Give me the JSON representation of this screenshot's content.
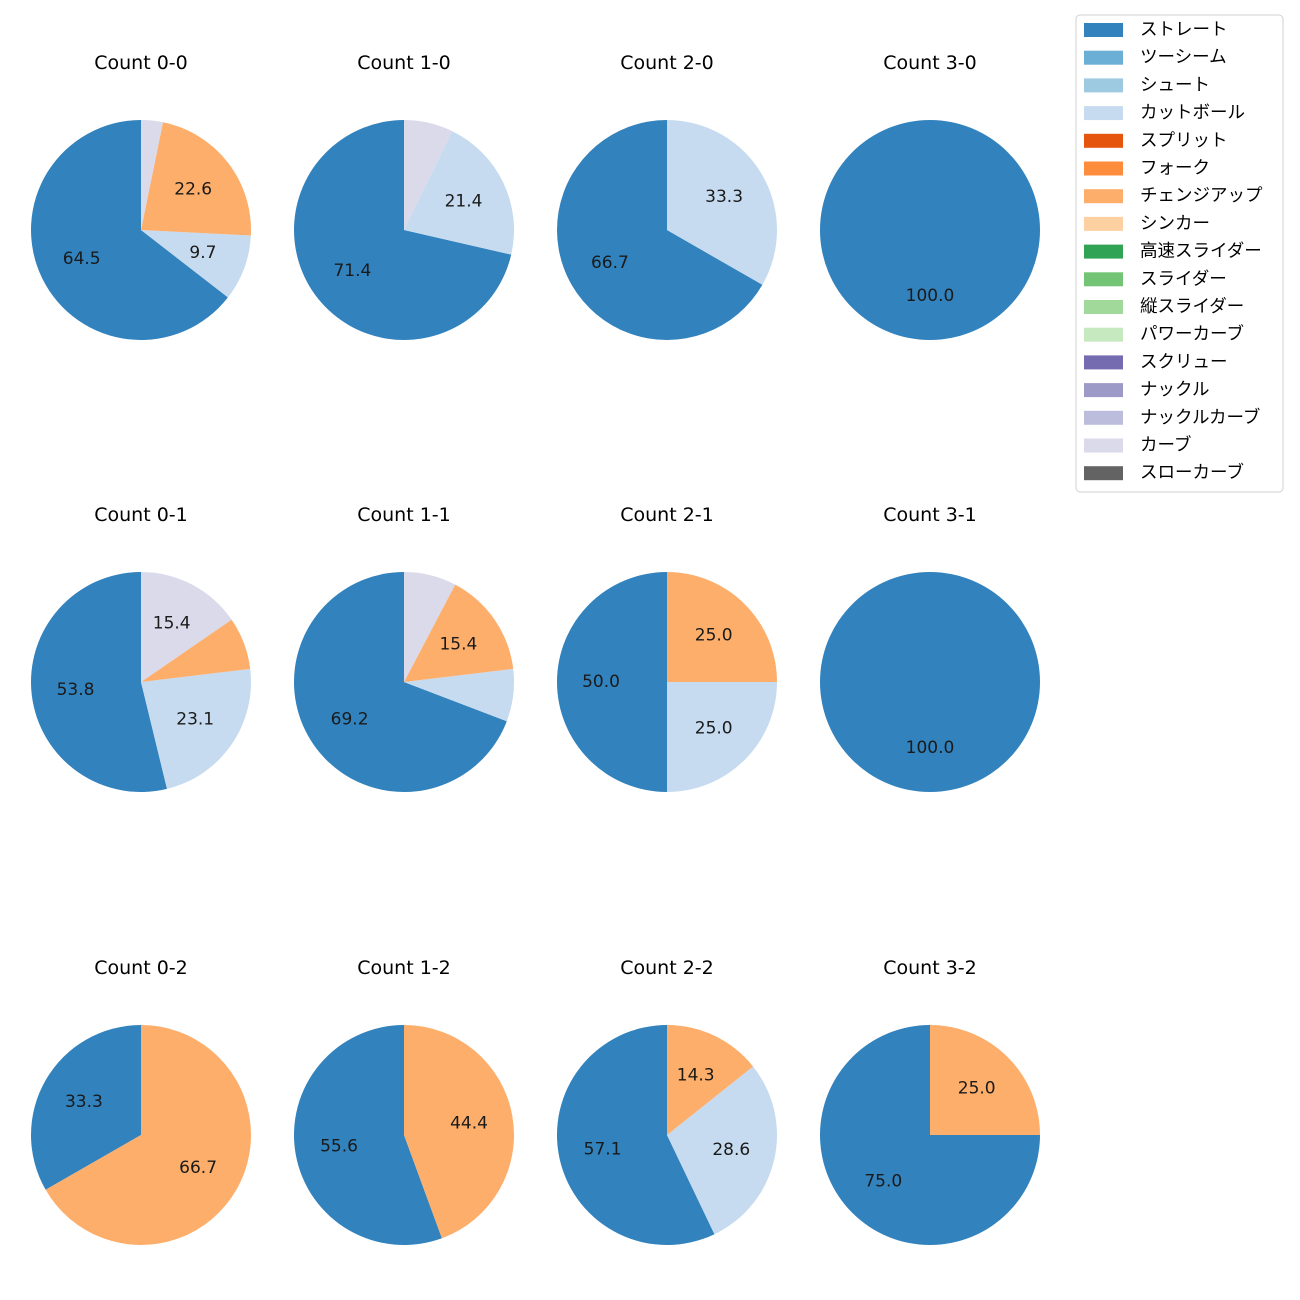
{
  "legend": {
    "items": [
      {
        "label": "ストレート",
        "color": "#3182bd"
      },
      {
        "label": "ツーシーム",
        "color": "#6baed6"
      },
      {
        "label": "シュート",
        "color": "#9ecae1"
      },
      {
        "label": "カットボール",
        "color": "#c6dbef"
      },
      {
        "label": "スプリット",
        "color": "#e6550d"
      },
      {
        "label": "フォーク",
        "color": "#fd8d3c"
      },
      {
        "label": "チェンジアップ",
        "color": "#fdae6b"
      },
      {
        "label": "シンカー",
        "color": "#fdd0a2"
      },
      {
        "label": "高速スライダー",
        "color": "#31a354"
      },
      {
        "label": "スライダー",
        "color": "#74c476"
      },
      {
        "label": "縦スライダー",
        "color": "#a1d99b"
      },
      {
        "label": "パワーカーブ",
        "color": "#c7e9c0"
      },
      {
        "label": "スクリュー",
        "color": "#756bb1"
      },
      {
        "label": "ナックル",
        "color": "#9e9ac8"
      },
      {
        "label": "ナックルカーブ",
        "color": "#bcbddc"
      },
      {
        "label": "カーブ",
        "color": "#dadaeb"
      },
      {
        "label": "スローカーブ",
        "color": "#636363"
      }
    ]
  },
  "chart_data": [
    {
      "type": "pie",
      "title": "Count 0-0",
      "slices": [
        {
          "pitch": "ストレート",
          "value": 64.5,
          "label": "64.5"
        },
        {
          "pitch": "カットボール",
          "value": 9.7,
          "label": "9.7"
        },
        {
          "pitch": "チェンジアップ",
          "value": 22.6,
          "label": "22.6"
        },
        {
          "pitch": "カーブ",
          "value": 3.2,
          "label": ""
        }
      ]
    },
    {
      "type": "pie",
      "title": "Count 1-0",
      "slices": [
        {
          "pitch": "ストレート",
          "value": 71.4,
          "label": "71.4"
        },
        {
          "pitch": "カットボール",
          "value": 21.4,
          "label": "21.4"
        },
        {
          "pitch": "カーブ",
          "value": 7.2,
          "label": ""
        }
      ]
    },
    {
      "type": "pie",
      "title": "Count 2-0",
      "slices": [
        {
          "pitch": "ストレート",
          "value": 66.7,
          "label": "66.7"
        },
        {
          "pitch": "カットボール",
          "value": 33.3,
          "label": "33.3"
        }
      ]
    },
    {
      "type": "pie",
      "title": "Count 3-0",
      "slices": [
        {
          "pitch": "ストレート",
          "value": 100.0,
          "label": "100.0"
        }
      ]
    },
    {
      "type": "pie",
      "title": "Count 0-1",
      "slices": [
        {
          "pitch": "ストレート",
          "value": 53.8,
          "label": "53.8"
        },
        {
          "pitch": "カットボール",
          "value": 23.1,
          "label": "23.1"
        },
        {
          "pitch": "チェンジアップ",
          "value": 7.7,
          "label": ""
        },
        {
          "pitch": "カーブ",
          "value": 15.4,
          "label": "15.4"
        }
      ]
    },
    {
      "type": "pie",
      "title": "Count 1-1",
      "slices": [
        {
          "pitch": "ストレート",
          "value": 69.2,
          "label": "69.2"
        },
        {
          "pitch": "カットボール",
          "value": 7.7,
          "label": ""
        },
        {
          "pitch": "チェンジアップ",
          "value": 15.4,
          "label": "15.4"
        },
        {
          "pitch": "カーブ",
          "value": 7.7,
          "label": ""
        }
      ]
    },
    {
      "type": "pie",
      "title": "Count 2-1",
      "slices": [
        {
          "pitch": "ストレート",
          "value": 50.0,
          "label": "50.0"
        },
        {
          "pitch": "カットボール",
          "value": 25.0,
          "label": "25.0"
        },
        {
          "pitch": "チェンジアップ",
          "value": 25.0,
          "label": "25.0"
        }
      ]
    },
    {
      "type": "pie",
      "title": "Count 3-1",
      "slices": [
        {
          "pitch": "ストレート",
          "value": 100.0,
          "label": "100.0"
        }
      ]
    },
    {
      "type": "pie",
      "title": "Count 0-2",
      "slices": [
        {
          "pitch": "ストレート",
          "value": 33.3,
          "label": "33.3"
        },
        {
          "pitch": "チェンジアップ",
          "value": 66.7,
          "label": "66.7"
        }
      ]
    },
    {
      "type": "pie",
      "title": "Count 1-2",
      "slices": [
        {
          "pitch": "ストレート",
          "value": 55.6,
          "label": "55.6"
        },
        {
          "pitch": "チェンジアップ",
          "value": 44.4,
          "label": "44.4"
        }
      ]
    },
    {
      "type": "pie",
      "title": "Count 2-2",
      "slices": [
        {
          "pitch": "ストレート",
          "value": 57.1,
          "label": "57.1"
        },
        {
          "pitch": "カットボール",
          "value": 28.6,
          "label": "28.6"
        },
        {
          "pitch": "チェンジアップ",
          "value": 14.3,
          "label": "14.3"
        }
      ]
    },
    {
      "type": "pie",
      "title": "Count 3-2",
      "slices": [
        {
          "pitch": "ストレート",
          "value": 75.0,
          "label": "75.0"
        },
        {
          "pitch": "チェンジアップ",
          "value": 25.0,
          "label": "25.0"
        }
      ]
    }
  ]
}
